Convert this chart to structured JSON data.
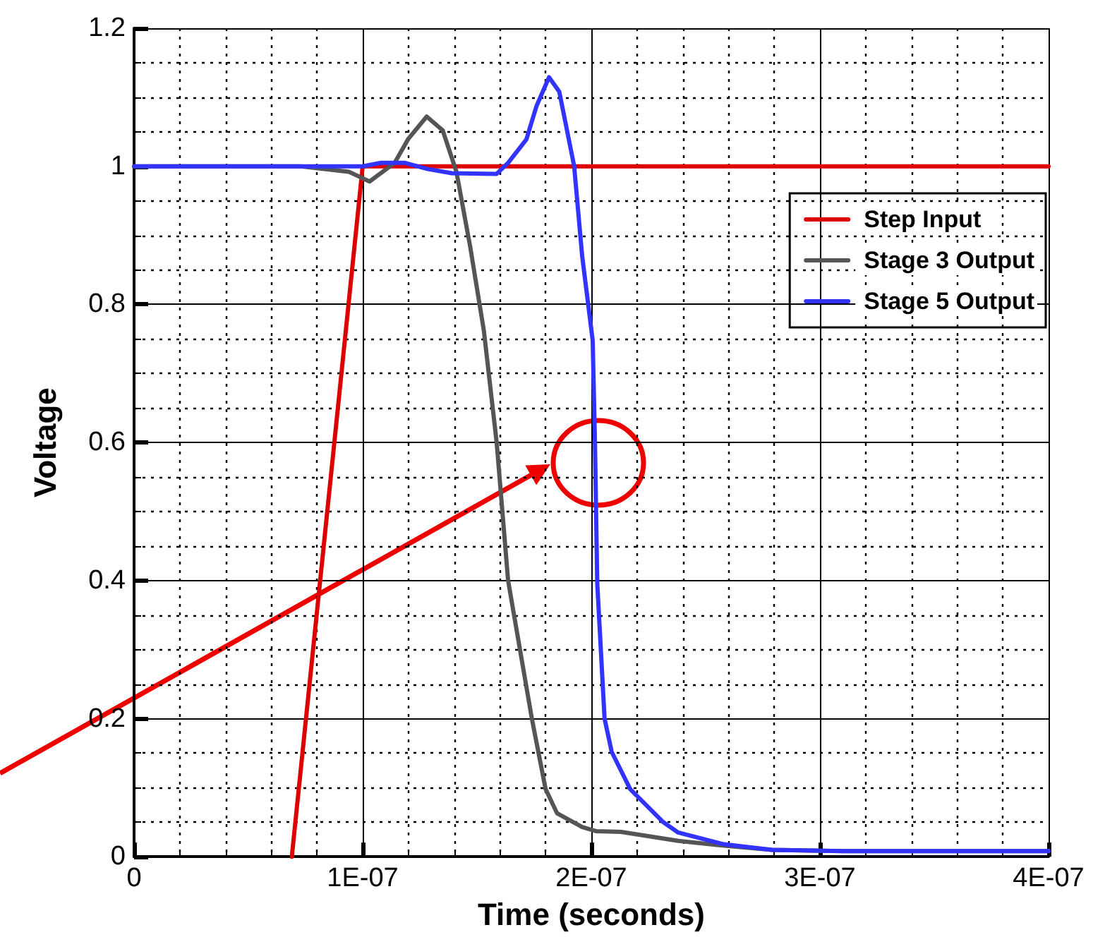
{
  "chart_data": {
    "type": "line",
    "xlabel": "Time (seconds)",
    "ylabel": "Voltage",
    "xlim": [
      0,
      4e-07
    ],
    "ylim": [
      0,
      1.2
    ],
    "xticks": [
      0,
      {
        "value": 1e-07,
        "label": "1E-07"
      },
      {
        "value": 2e-07,
        "label": "2E-07"
      },
      {
        "value": 3e-07,
        "label": "3E-07"
      },
      {
        "value": 4e-07,
        "label": "4E-07"
      }
    ],
    "yticks": [
      0,
      0.2,
      0.4,
      0.6,
      0.8,
      1,
      1.2
    ],
    "grid": true,
    "legend": "top right",
    "marker": "none",
    "line_style": "solid",
    "series": [
      {
        "name": "Step Input",
        "color": "#dd0000",
        "x": [
          6.9e-08,
          1e-07,
          4e-07
        ],
        "values": [
          0,
          1,
          1
        ]
      },
      {
        "name": "Stage 3 Output",
        "color": "#555555",
        "x": [
          0,
          7.3e-08,
          9.4e-08,
          1.03e-07,
          1.14e-07,
          1.2e-07,
          1.28e-07,
          1.35e-07,
          1.41e-07,
          1.47e-07,
          1.53e-07,
          1.586e-07,
          1.636e-07,
          1.74e-07,
          1.8e-07,
          1.85e-07,
          1.96e-07,
          2.02e-07,
          2.13e-07,
          2.38e-07,
          2.58e-07,
          2.79e-07,
          3.1e-07,
          4e-07
        ],
        "values": [
          1,
          1,
          0.992,
          0.978,
          1.005,
          1.04,
          1.072,
          1.052,
          0.992,
          0.884,
          0.762,
          0.6,
          0.4,
          0.2,
          0.098,
          0.063,
          0.043,
          0.037,
          0.036,
          0.023,
          0.016,
          0.01,
          0.008,
          0.008
        ]
      },
      {
        "name": "Stage 5 Output",
        "color": "#3333ff",
        "x": [
          0,
          1e-07,
          1.08e-07,
          1.185e-07,
          1.285e-07,
          1.39e-07,
          1.586e-07,
          1.636e-07,
          1.716e-07,
          1.76e-07,
          1.815e-07,
          1.86e-07,
          1.925e-07,
          1.96e-07,
          2.006e-07,
          2.016e-07,
          2.026e-07,
          2.058e-07,
          2.089e-07,
          2.17e-07,
          2.315e-07,
          2.38e-07,
          2.58e-07,
          2.79e-07,
          3.1e-07,
          4e-07
        ],
        "values": [
          1,
          1,
          1.005,
          1.005,
          0.996,
          0.99,
          0.989,
          1.005,
          1.039,
          1.087,
          1.129,
          1.108,
          1.0,
          0.87,
          0.748,
          0.6,
          0.396,
          0.2,
          0.152,
          0.098,
          0.05,
          0.035,
          0.018,
          0.01,
          0.008,
          0.008
        ]
      }
    ]
  }
}
